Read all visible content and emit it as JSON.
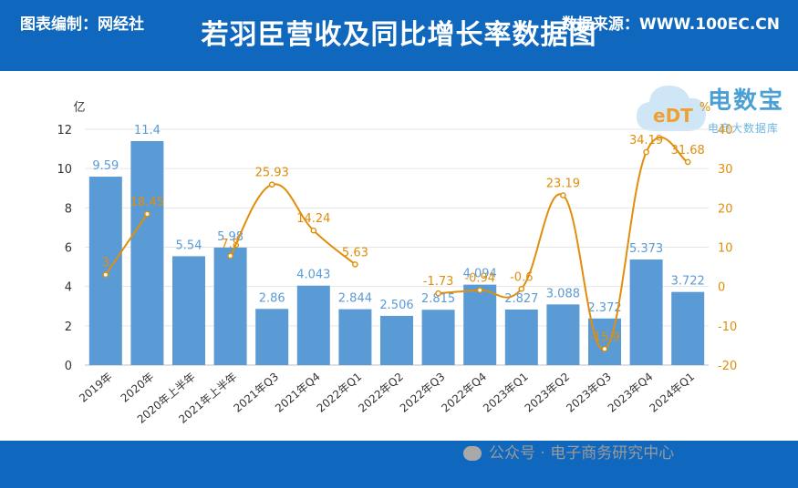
{
  "header": {
    "title": "若羽臣营收及同比增长率数据图"
  },
  "footer": {
    "left_text": "图表编制：网经社",
    "right_text": "数据来源：WWW.100EC.CN",
    "watermark_text": "公众号 · 电子商务研究中心"
  },
  "logo": {
    "brand_text": "电数宝",
    "sub_text": "电商大数据库",
    "mark_text": "eDT"
  },
  "colors": {
    "bar": "#5b9bd5",
    "line": "#e08e0b",
    "header_bg": "#1068be"
  },
  "chart_data": {
    "type": "bar+line",
    "categories": [
      "2019年",
      "2020年",
      "2020年上半年",
      "2021年上半年",
      "2021年Q3",
      "2021年Q4",
      "2022年Q1",
      "2022年Q2",
      "2022年Q3",
      "2022年Q4",
      "2023年Q1",
      "2023年Q2",
      "2023年Q3",
      "2023年Q4",
      "2024年Q1"
    ],
    "series": [
      {
        "kind": "bar",
        "axis": "left",
        "values": [
          9.59,
          11.4,
          5.54,
          5.98,
          2.86,
          4.043,
          2.844,
          2.506,
          2.815,
          4.094,
          2.827,
          3.088,
          2.372,
          5.373,
          3.722
        ],
        "labels": [
          "9.59",
          "11.4",
          "5.54",
          "5.98",
          "2.86",
          "4.043",
          "2.844",
          "2.506",
          "2.815",
          "4.094",
          "2.827",
          "3.088",
          "2.372",
          "5.373",
          "3.722"
        ]
      },
      {
        "kind": "line",
        "axis": "right",
        "values": [
          3,
          18.45,
          null,
          7.8,
          25.93,
          14.24,
          5.63,
          null,
          -1.73,
          -0.94,
          -0.6,
          23.19,
          -15.9,
          34.19,
          31.68
        ],
        "labels": [
          "3",
          "18.45",
          "",
          "7.8",
          "25.93",
          "14.24",
          "5.63",
          "",
          "-1.73",
          "-0.94",
          "-0.6",
          "23.19",
          "-15.9",
          "34.19",
          "31.68"
        ]
      }
    ],
    "left_axis": {
      "unit": "亿",
      "min": 0,
      "max": 12,
      "ticks": [
        0,
        2,
        4,
        6,
        8,
        10,
        12
      ]
    },
    "right_axis": {
      "unit": "%",
      "min": -20,
      "max": 40,
      "ticks": [
        -20,
        -10,
        0,
        10,
        20,
        30,
        40
      ]
    }
  }
}
